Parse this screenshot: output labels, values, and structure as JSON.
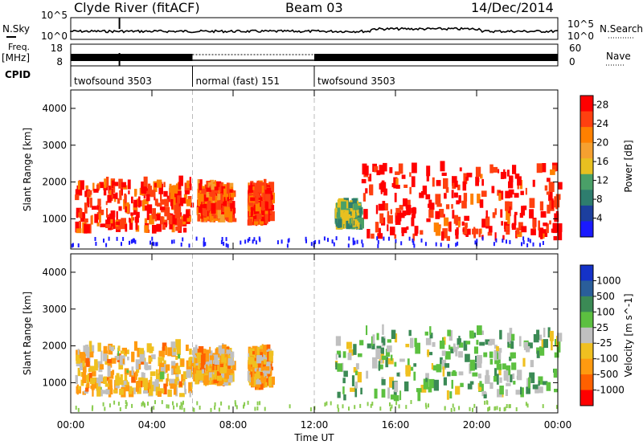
{
  "header": {
    "title": "Clyde River (fitACF)",
    "beam": "Beam 03",
    "date": "14/Dec/2014"
  },
  "nsky_panel": {
    "left_label": "N.Sky",
    "left_ticks": [
      "10^5",
      "10^0"
    ],
    "right_ticks": [
      "10^5",
      "10^0"
    ],
    "right_label": "N.Search"
  },
  "freq_panel": {
    "left_label_1": "Freq.",
    "left_label_2": "[MHz]",
    "left_ticks": [
      "18",
      "8"
    ],
    "right_ticks": [
      "60",
      "0"
    ],
    "right_label": "Nave"
  },
  "cpid": {
    "label": "CPID",
    "segments": [
      {
        "name": "twofsound 3503",
        "start": 0,
        "end": 6
      },
      {
        "name": "normal (fast) 151",
        "start": 6,
        "end": 12
      },
      {
        "name": "twofsound 3503",
        "start": 12,
        "end": 24
      }
    ]
  },
  "colors": {
    "power": [
      "#1a1aff",
      "#1c3f9e",
      "#2e7d6e",
      "#4aa068",
      "#e8c020",
      "#f5a030",
      "#ff8000",
      "#ff4010",
      "#ff0000"
    ],
    "velocity": [
      "#1432c8",
      "#2a5e9a",
      "#3b8a55",
      "#5cc040",
      "#c0c0c0",
      "#f0c020",
      "#ff9a10",
      "#ff6000",
      "#ff0000"
    ]
  },
  "chart_data": [
    {
      "type": "heatmap",
      "name": "power",
      "ylabel": "Slant Range [km]",
      "xlabel": "Time UT",
      "x_ticks": [
        "00:00",
        "04:00",
        "08:00",
        "12:00",
        "16:00",
        "20:00",
        "00:00"
      ],
      "y_ticks": [
        "1000",
        "2000",
        "3000",
        "4000"
      ],
      "xlim": [
        0,
        24
      ],
      "ylim": [
        180,
        4500
      ],
      "colorbar": {
        "label": "Power [dB]",
        "ticks": [
          "4",
          "8",
          "12",
          "16",
          "20",
          "24",
          "28"
        ],
        "range": [
          0,
          30
        ]
      },
      "blobs": [
        {
          "t0": 0.2,
          "t1": 5.9,
          "r0": 600,
          "r1": 1900,
          "v": 26
        },
        {
          "t0": 6.2,
          "t1": 7.9,
          "r0": 900,
          "r1": 1800,
          "v": 24
        },
        {
          "t0": 8.7,
          "t1": 9.8,
          "r0": 800,
          "r1": 1800,
          "v": 26
        },
        {
          "t0": 13.0,
          "t1": 14.2,
          "r0": 700,
          "r1": 1300,
          "v": 12
        },
        {
          "t0": 14.3,
          "t1": 24.0,
          "r0": 400,
          "r1": 2300,
          "v": 28
        }
      ]
    },
    {
      "type": "heatmap",
      "name": "velocity",
      "ylabel": "Slant Range [km]",
      "xlabel": "Time UT",
      "x_ticks": [
        "00:00",
        "04:00",
        "08:00",
        "12:00",
        "16:00",
        "20:00",
        "00:00"
      ],
      "y_ticks": [
        "1000",
        "2000",
        "3000",
        "4000"
      ],
      "xlim": [
        0,
        24
      ],
      "ylim": [
        180,
        4500
      ],
      "colorbar": {
        "label": "Velocity [m s^-1]",
        "ticks": [
          "1000",
          "500",
          "100",
          "25",
          "-25",
          "-100",
          "-500",
          "-1000"
        ],
        "range": [
          -1200,
          1200
        ]
      },
      "blobs": [
        {
          "t0": 0.2,
          "t1": 6.0,
          "r0": 600,
          "r1": 1900,
          "v": -300
        },
        {
          "t0": 6.0,
          "t1": 7.9,
          "r0": 900,
          "r1": 1800,
          "v": -350
        },
        {
          "t0": 8.7,
          "t1": 9.8,
          "r0": 800,
          "r1": 1800,
          "v": -400
        },
        {
          "t0": 13.0,
          "t1": 24.0,
          "r0": 500,
          "r1": 2300,
          "v": 200
        }
      ]
    }
  ]
}
